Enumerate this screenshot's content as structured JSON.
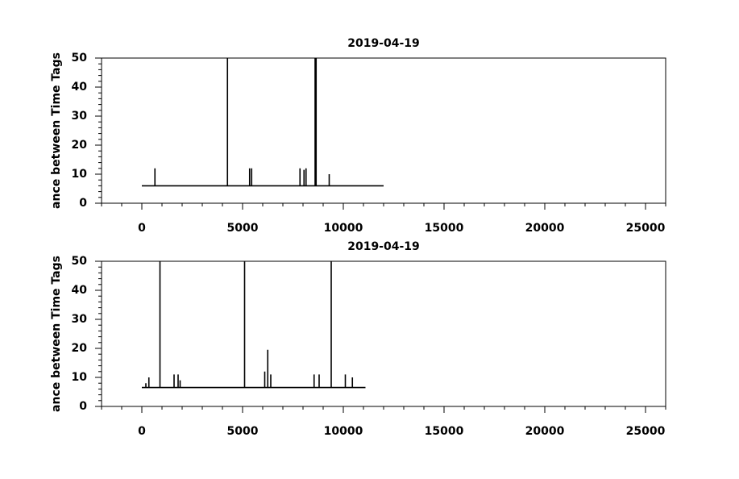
{
  "chart_data": [
    {
      "type": "line",
      "title": "2019-04-19",
      "y_label": "ance between Time Tags",
      "color": "#000000",
      "x": [
        0,
        650,
        650,
        650,
        4250,
        4250,
        4250,
        5350,
        5350,
        5350,
        5450,
        5450,
        5450,
        7850,
        7850,
        7850,
        8050,
        8050,
        8050,
        8150,
        8150,
        8150,
        8600,
        8600,
        8600,
        8650,
        8650,
        8650,
        9300,
        9300,
        9300,
        12000
      ],
      "values": [
        6,
        6,
        12,
        6,
        6,
        50,
        6,
        6,
        12,
        6,
        6,
        12,
        6,
        6,
        12,
        6,
        6,
        11.5,
        6,
        6,
        12,
        6,
        6,
        50,
        6,
        6,
        50,
        6,
        6,
        10,
        6,
        6
      ],
      "xlim": [
        -2000,
        26000
      ],
      "xticks": [
        0,
        5000,
        10000,
        15000,
        20000,
        25000
      ],
      "minor_xticks": [
        -2000,
        -1000,
        1000,
        2000,
        3000,
        4000,
        6000,
        7000,
        8000,
        9000,
        11000,
        12000,
        13000,
        14000,
        16000,
        17000,
        18000,
        19000,
        21000,
        22000,
        23000,
        24000,
        26000
      ],
      "ylim": [
        0,
        50
      ],
      "yticks": [
        0,
        10,
        20,
        30,
        40,
        50
      ],
      "minor_yticks": [
        2,
        4,
        6,
        8,
        12,
        14,
        16,
        18,
        22,
        24,
        26,
        28,
        32,
        34,
        36,
        38,
        42,
        44,
        46,
        48
      ]
    },
    {
      "type": "line",
      "title": "2019-04-19",
      "y_label": "ance between Time Tags",
      "color": "#000000",
      "x": [
        0,
        200,
        200,
        200,
        350,
        350,
        350,
        900,
        900,
        900,
        1600,
        1600,
        1600,
        1800,
        1800,
        1800,
        1900,
        1900,
        1900,
        5100,
        5100,
        5100,
        6100,
        6100,
        6100,
        6250,
        6250,
        6250,
        6400,
        6400,
        6400,
        8550,
        8550,
        8550,
        8800,
        8800,
        8800,
        9400,
        9400,
        9400,
        10100,
        10100,
        10100,
        10450,
        10450,
        10450,
        11100
      ],
      "values": [
        6.5,
        6.5,
        8,
        6.5,
        6.5,
        10,
        6.5,
        6.5,
        50,
        6.5,
        6.5,
        11,
        6.5,
        6.5,
        11,
        6.5,
        6.5,
        9,
        6.5,
        6.5,
        50,
        6.5,
        6.5,
        12,
        6.5,
        6.5,
        19.5,
        6.5,
        6.5,
        11,
        6.5,
        6.5,
        11,
        6.5,
        6.5,
        11,
        6.5,
        6.5,
        50,
        6.5,
        6.5,
        11,
        6.5,
        6.5,
        10,
        6.5,
        6.5
      ],
      "xlim": [
        -2000,
        26000
      ],
      "xticks": [
        0,
        5000,
        10000,
        15000,
        20000,
        25000
      ],
      "minor_xticks": [
        -2000,
        -1000,
        1000,
        2000,
        3000,
        4000,
        6000,
        7000,
        8000,
        9000,
        11000,
        12000,
        13000,
        14000,
        16000,
        17000,
        18000,
        19000,
        21000,
        22000,
        23000,
        24000,
        26000
      ],
      "ylim": [
        0,
        50
      ],
      "yticks": [
        0,
        10,
        20,
        30,
        40,
        50
      ],
      "minor_yticks": [
        2,
        4,
        6,
        8,
        12,
        14,
        16,
        18,
        22,
        24,
        26,
        28,
        32,
        34,
        36,
        38,
        42,
        44,
        46,
        48
      ]
    }
  ]
}
